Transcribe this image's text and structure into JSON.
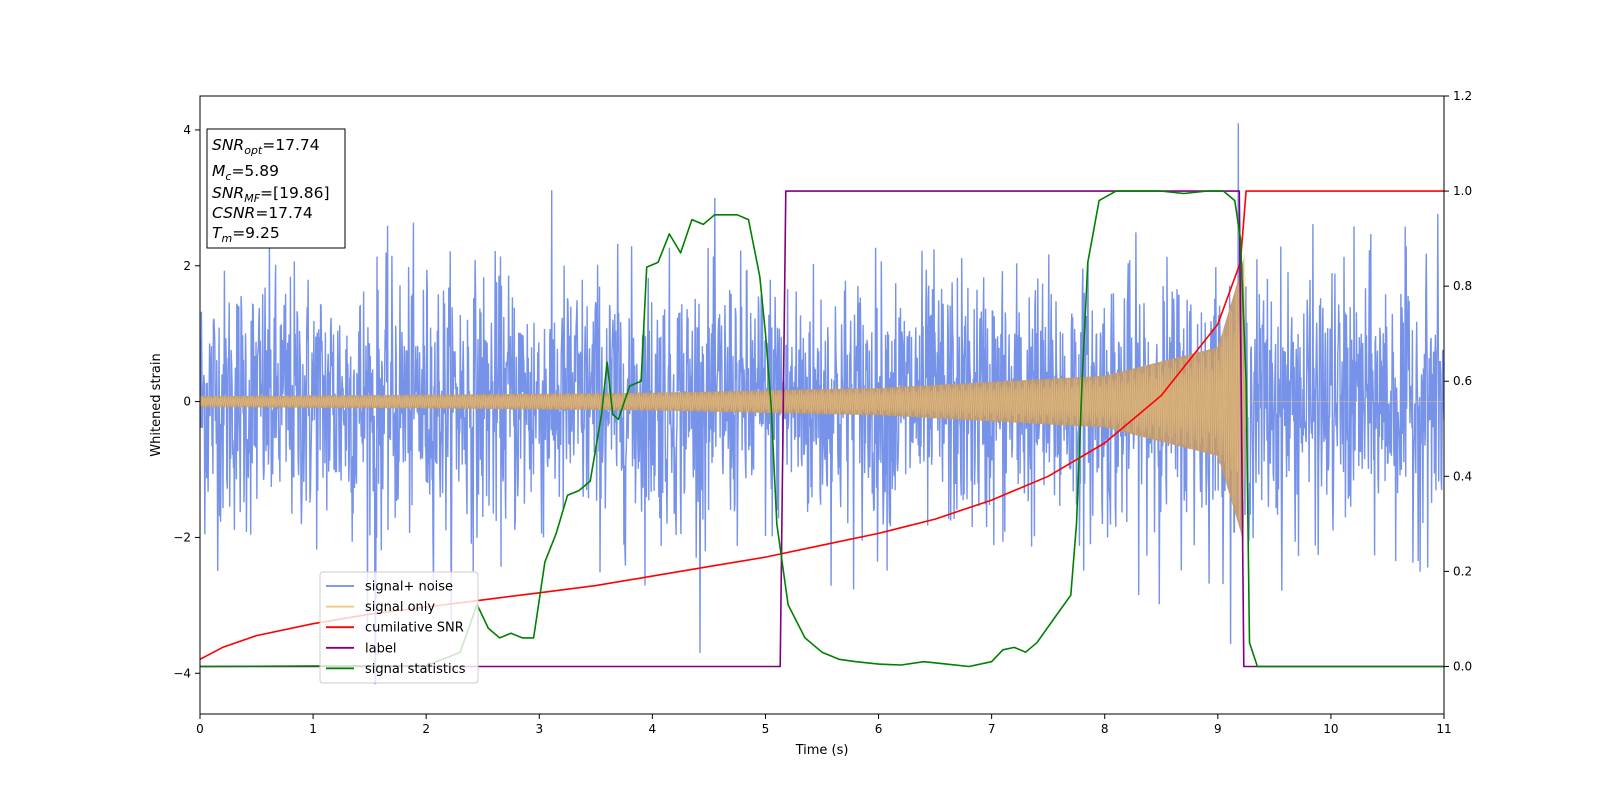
{
  "chart_data": {
    "type": "line",
    "xlabel": "Time (s)",
    "ylabel": "Whitened strain",
    "xlim": [
      0,
      11
    ],
    "ylim_left": [
      -4.6,
      4.5
    ],
    "ylim_right": [
      -0.1,
      1.2
    ],
    "x_ticks": [
      "0",
      "1",
      "2",
      "3",
      "4",
      "5",
      "6",
      "7",
      "8",
      "9",
      "10",
      "11"
    ],
    "y_ticks_left": [
      "−4",
      "−2",
      "0",
      "2",
      "4"
    ],
    "y_ticks_right": [
      "0.0",
      "0.2",
      "0.4",
      "0.6",
      "0.8",
      "1.0",
      "1.2"
    ],
    "annotation": {
      "lines": [
        {
          "base": "SNR",
          "sub": "opt",
          "value": "=17.74"
        },
        {
          "base": "M",
          "sub": "c",
          "value": "=5.89"
        },
        {
          "base": "SNR",
          "sub": "MF",
          "value": "=[19.86]"
        },
        {
          "base": "CSNR",
          "sub": "",
          "value": "=17.74"
        },
        {
          "base": "T",
          "sub": "m",
          "value": "=9.25"
        }
      ]
    },
    "legend": {
      "position": "lower-left",
      "entries": [
        "signal+ noise",
        "signal only",
        "cumilative SNR",
        "label",
        "signal statistics"
      ]
    },
    "series": [
      {
        "name": "signal+ noise",
        "axis": "left",
        "color": "#6f8ce8",
        "kind": "noise",
        "x_range": [
          0,
          11
        ],
        "std": 0.95,
        "peak": [
          9.18,
          4.1
        ],
        "min": [
          1.55,
          -4.15
        ]
      },
      {
        "name": "signal only",
        "axis": "left",
        "color": "#f2c47a",
        "kind": "chirp_envelope",
        "merger_time": 9.25,
        "amplitude_points": [
          [
            0,
            0.08
          ],
          [
            2,
            0.1
          ],
          [
            4,
            0.13
          ],
          [
            6,
            0.2
          ],
          [
            8,
            0.38
          ],
          [
            9,
            0.8
          ],
          [
            9.2,
            1.9
          ],
          [
            9.25,
            2.3
          ]
        ]
      },
      {
        "name": "cumilative SNR",
        "axis": "right",
        "color": "#ff0000",
        "points": [
          [
            0,
            0.015
          ],
          [
            0.2,
            0.04
          ],
          [
            0.5,
            0.065
          ],
          [
            1,
            0.09
          ],
          [
            1.5,
            0.11
          ],
          [
            2,
            0.125
          ],
          [
            2.5,
            0.14
          ],
          [
            3,
            0.155
          ],
          [
            3.5,
            0.17
          ],
          [
            4,
            0.19
          ],
          [
            4.5,
            0.21
          ],
          [
            5,
            0.23
          ],
          [
            5.5,
            0.255
          ],
          [
            6,
            0.28
          ],
          [
            6.5,
            0.31
          ],
          [
            7,
            0.35
          ],
          [
            7.5,
            0.4
          ],
          [
            8,
            0.47
          ],
          [
            8.5,
            0.57
          ],
          [
            9,
            0.72
          ],
          [
            9.2,
            0.85
          ],
          [
            9.25,
            1.0
          ],
          [
            11,
            1.0
          ]
        ]
      },
      {
        "name": "label",
        "axis": "right",
        "color": "#800080",
        "points": [
          [
            0,
            0
          ],
          [
            5.13,
            0
          ],
          [
            5.18,
            1
          ],
          [
            9.19,
            1
          ],
          [
            9.23,
            0
          ],
          [
            11,
            0
          ]
        ]
      },
      {
        "name": "signal statistics",
        "axis": "right",
        "color": "#008000",
        "points": [
          [
            0,
            0
          ],
          [
            2.0,
            0.002
          ],
          [
            2.2,
            0.02
          ],
          [
            2.3,
            0.03
          ],
          [
            2.45,
            0.13
          ],
          [
            2.55,
            0.08
          ],
          [
            2.65,
            0.06
          ],
          [
            2.75,
            0.07
          ],
          [
            2.85,
            0.06
          ],
          [
            2.95,
            0.06
          ],
          [
            3.05,
            0.22
          ],
          [
            3.15,
            0.28
          ],
          [
            3.25,
            0.36
          ],
          [
            3.35,
            0.37
          ],
          [
            3.45,
            0.39
          ],
          [
            3.55,
            0.53
          ],
          [
            3.6,
            0.64
          ],
          [
            3.65,
            0.53
          ],
          [
            3.7,
            0.52
          ],
          [
            3.8,
            0.59
          ],
          [
            3.9,
            0.6
          ],
          [
            3.95,
            0.84
          ],
          [
            4.05,
            0.85
          ],
          [
            4.15,
            0.91
          ],
          [
            4.25,
            0.87
          ],
          [
            4.35,
            0.94
          ],
          [
            4.45,
            0.93
          ],
          [
            4.55,
            0.95
          ],
          [
            4.65,
            0.95
          ],
          [
            4.75,
            0.95
          ],
          [
            4.85,
            0.94
          ],
          [
            4.95,
            0.82
          ],
          [
            5.0,
            0.7
          ],
          [
            5.05,
            0.55
          ],
          [
            5.1,
            0.3
          ],
          [
            5.2,
            0.13
          ],
          [
            5.35,
            0.06
          ],
          [
            5.5,
            0.03
          ],
          [
            5.65,
            0.015
          ],
          [
            5.8,
            0.01
          ],
          [
            6.0,
            0.005
          ],
          [
            6.2,
            0.003
          ],
          [
            6.4,
            0.01
          ],
          [
            6.6,
            0.005
          ],
          [
            6.8,
            0.0
          ],
          [
            7.0,
            0.01
          ],
          [
            7.1,
            0.035
          ],
          [
            7.2,
            0.04
          ],
          [
            7.3,
            0.03
          ],
          [
            7.4,
            0.05
          ],
          [
            7.55,
            0.1
          ],
          [
            7.7,
            0.15
          ],
          [
            7.75,
            0.3
          ],
          [
            7.8,
            0.6
          ],
          [
            7.85,
            0.85
          ],
          [
            7.95,
            0.98
          ],
          [
            8.1,
            1.0
          ],
          [
            8.3,
            1.0
          ],
          [
            8.5,
            1.0
          ],
          [
            8.7,
            0.995
          ],
          [
            8.9,
            1.0
          ],
          [
            9.05,
            1.0
          ],
          [
            9.15,
            0.98
          ],
          [
            9.2,
            0.9
          ],
          [
            9.25,
            0.6
          ],
          [
            9.28,
            0.05
          ],
          [
            9.35,
            0.0
          ],
          [
            11,
            0
          ]
        ]
      }
    ]
  }
}
